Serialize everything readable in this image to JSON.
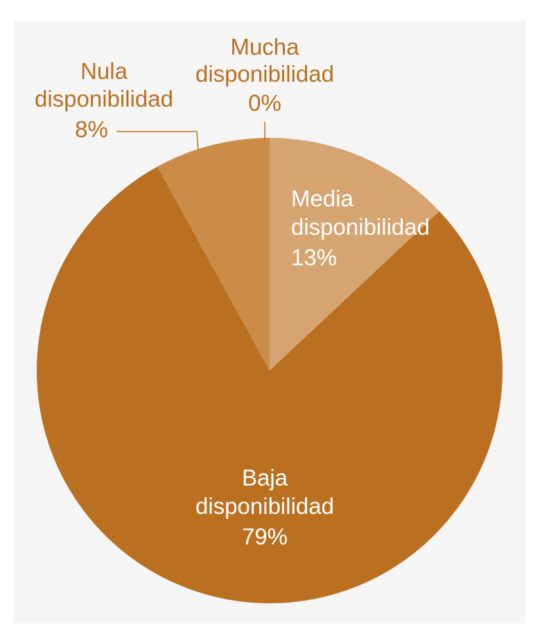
{
  "chart_data": {
    "type": "pie",
    "start_angle_deg": 0,
    "direction": "clockwise",
    "slices": [
      {
        "label_line1": "Mucha",
        "label_line2": "disponibilidad",
        "value": 0,
        "value_label": "0%",
        "color": "#e9c9a2"
      },
      {
        "label_line1": "Media",
        "label_line2": "disponibilidad",
        "value": 13,
        "value_label": "13%",
        "color": "#d5a470"
      },
      {
        "label_line1": "Baja",
        "label_line2": "disponibilidad",
        "value": 79,
        "value_label": "79%",
        "color": "#ba7020"
      },
      {
        "label_line1": "Nula",
        "label_line2": "disponibilidad",
        "value": 8,
        "value_label": "8%",
        "color": "#cb8c49"
      }
    ],
    "label_color_outside": "#ba7020",
    "label_color_inside": "#ffffff",
    "leader_color": "#ba7020"
  }
}
